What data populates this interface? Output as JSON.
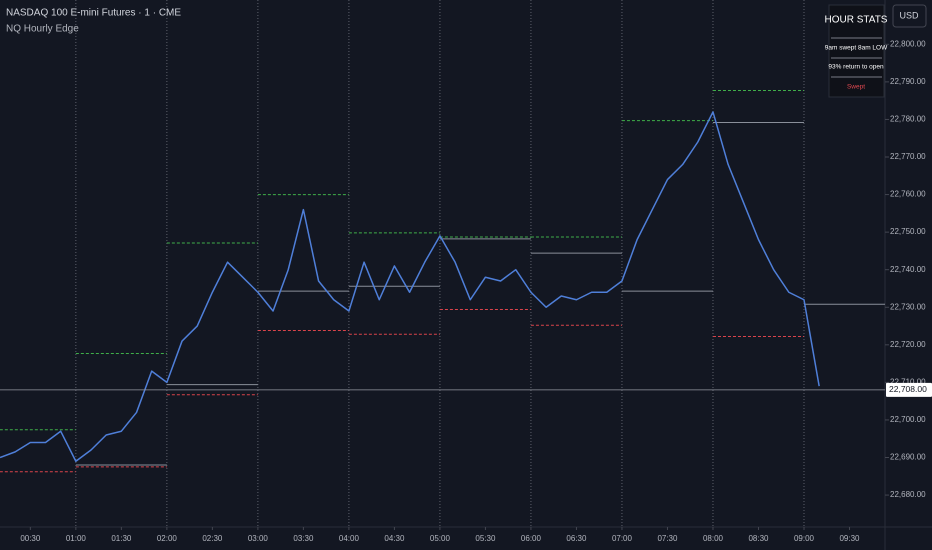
{
  "chart_data": {
    "type": "line",
    "title": "NASDAQ 100 E-mini Futures · 1 · CME",
    "subtitle": "NQ Hourly Edge",
    "currency": "USD",
    "x": [
      10,
      20,
      30,
      40,
      50,
      60,
      70,
      80,
      90,
      100,
      110,
      120,
      130,
      140,
      150,
      160,
      170,
      180,
      190,
      200,
      210,
      220,
      230,
      240,
      250,
      260,
      270,
      280,
      290,
      300,
      310,
      320,
      330,
      340,
      350,
      360,
      370,
      380,
      390,
      400,
      410,
      420,
      430,
      440,
      450,
      460,
      470,
      480,
      490,
      500,
      510,
      520,
      530,
      540,
      550
    ],
    "series": [
      {
        "color": "#4f7fd9",
        "values": [
          22690,
          22691.5,
          22694,
          22694,
          22697,
          22689,
          22692,
          22696,
          22697,
          22702,
          22713,
          22710,
          22721,
          22725,
          22734,
          22742,
          22738,
          22734,
          22729,
          22740,
          22756,
          22737,
          22732,
          22729,
          22742,
          22732,
          22741,
          22734,
          22742,
          22749,
          22742,
          22732,
          22738,
          22737,
          22740,
          22734,
          22730,
          22733,
          22732,
          22734,
          22734,
          22737,
          22748,
          22756,
          22764,
          22768,
          22774,
          22782,
          22768,
          22758,
          22748,
          22740,
          22734,
          22732,
          22709
        ]
      }
    ],
    "level_hours": [
      0,
      60,
      120,
      180,
      240,
      300,
      360,
      420,
      480,
      540
    ],
    "levels": [
      {
        "color": "#3fae49",
        "values": [
          22697.4,
          22717.7,
          22747.1,
          22760,
          22749.8,
          22748.7,
          22748.7,
          22779.7,
          22787.7,
          null
        ]
      },
      {
        "color": "#d9434b",
        "values": [
          22686.2,
          22687.5,
          22706.7,
          22723.8,
          22722.8,
          22729.4,
          22725.2,
          null,
          22722.2,
          null
        ]
      },
      {
        "color": "#8a8f9a",
        "values": [
          null,
          22688,
          22709.4,
          22734.3,
          22735.6,
          22748.2,
          22744.4,
          22734.3,
          22779.2,
          22730.8
        ]
      }
    ],
    "last_price": {
      "value": 22708,
      "label": "22,708.00"
    },
    "xlim": [
      10,
      593.4
    ],
    "ylim": [
      22671.5,
      22811.8
    ],
    "xticks": [
      {
        "value": 30,
        "label": "00:30"
      },
      {
        "value": 60,
        "label": "01:00"
      },
      {
        "value": 90,
        "label": "01:30"
      },
      {
        "value": 120,
        "label": "02:00"
      },
      {
        "value": 150,
        "label": "02:30"
      },
      {
        "value": 180,
        "label": "03:00"
      },
      {
        "value": 210,
        "label": "03:30"
      },
      {
        "value": 240,
        "label": "04:00"
      },
      {
        "value": 270,
        "label": "04:30"
      },
      {
        "value": 300,
        "label": "05:00"
      },
      {
        "value": 330,
        "label": "05:30"
      },
      {
        "value": 360,
        "label": "06:00"
      },
      {
        "value": 390,
        "label": "06:30"
      },
      {
        "value": 420,
        "label": "07:00"
      },
      {
        "value": 450,
        "label": "07:30"
      },
      {
        "value": 480,
        "label": "08:00"
      },
      {
        "value": 510,
        "label": "08:30"
      },
      {
        "value": 540,
        "label": "09:00"
      },
      {
        "value": 570,
        "label": "09:30"
      }
    ],
    "yticks": [
      {
        "value": 22680,
        "label": "22,680.00"
      },
      {
        "value": 22690,
        "label": "22,690.00"
      },
      {
        "value": 22700,
        "label": "22,700.00"
      },
      {
        "value": 22710,
        "label": "22,710.00"
      },
      {
        "value": 22720,
        "label": "22,720.00"
      },
      {
        "value": 22730,
        "label": "22,730.00"
      },
      {
        "value": 22740,
        "label": "22,740.00"
      },
      {
        "value": 22750,
        "label": "22,750.00"
      },
      {
        "value": 22760,
        "label": "22,760.00"
      },
      {
        "value": 22770,
        "label": "22,770.00"
      },
      {
        "value": 22780,
        "label": "22,780.00"
      },
      {
        "value": 22790,
        "label": "22,790.00"
      },
      {
        "value": 22800,
        "label": "22,800.00"
      }
    ],
    "grid": false,
    "stats_panel": {
      "title": "HOUR STATS",
      "rows": [
        "9am swept 8am LOW",
        "93% return to open"
      ],
      "status": "Swept"
    }
  }
}
